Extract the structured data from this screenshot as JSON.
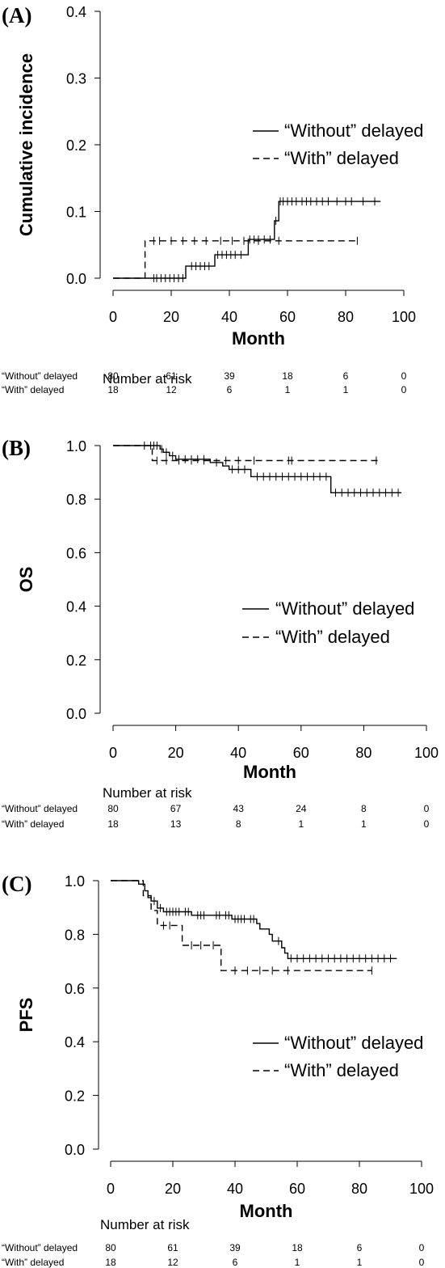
{
  "chart_data": [
    {
      "type": "line",
      "panel_label": "(A)",
      "ylabel": "Cumulative incidence",
      "xlabel": "Month",
      "xlim": [
        0,
        100
      ],
      "ylim": [
        0,
        0.4
      ],
      "x_ticks": [
        "0",
        "20",
        "40",
        "60",
        "80",
        "100"
      ],
      "y_ticks": [
        "0.0",
        "0.1",
        "0.2",
        "0.3",
        "0.4"
      ],
      "legend_position": "right",
      "series": [
        {
          "name": "“Without” delayed",
          "style": "solid",
          "steps": [
            [
              0,
              0.0
            ],
            [
              25,
              0.0
            ],
            [
              25,
              0.018
            ],
            [
              35,
              0.018
            ],
            [
              35,
              0.035
            ],
            [
              46.5,
              0.035
            ],
            [
              46.5,
              0.058
            ],
            [
              55.5,
              0.058
            ],
            [
              55.5,
              0.086
            ],
            [
              57,
              0.086
            ],
            [
              57,
              0.115
            ],
            [
              92,
              0.115
            ]
          ],
          "censor_times": [
            14,
            15,
            16.5,
            18,
            19.5,
            21,
            22.5,
            24,
            27,
            28.5,
            30,
            31.5,
            33,
            36,
            37.5,
            39,
            40.5,
            42,
            44,
            47,
            48.5,
            50,
            52,
            54,
            56,
            57.5,
            58.5,
            60,
            61.5,
            63,
            65,
            66.5,
            68,
            70,
            72,
            74,
            77,
            80,
            82,
            86,
            90
          ]
        },
        {
          "name": "“With” delayed",
          "style": "dashed",
          "steps": [
            [
              0,
              0.0
            ],
            [
              11,
              0.0
            ],
            [
              11,
              0.056
            ],
            [
              84,
              0.056
            ]
          ],
          "censor_times": [
            14,
            16,
            20,
            24,
            28,
            32,
            37,
            41,
            45,
            50,
            57,
            84
          ]
        }
      ]
    },
    {
      "type": "line",
      "panel_label": "(B)",
      "ylabel": "OS",
      "xlabel": "Month",
      "xlim": [
        0,
        100
      ],
      "ylim": [
        0,
        1.0
      ],
      "x_ticks": [
        "0",
        "20",
        "40",
        "60",
        "80",
        "100"
      ],
      "y_ticks": [
        "0.0",
        "0.2",
        "0.4",
        "0.6",
        "0.8",
        "1.0"
      ],
      "legend_position": "right",
      "series": [
        {
          "name": "“Without” delayed",
          "style": "solid",
          "steps": [
            [
              0,
              1.0
            ],
            [
              15,
              1.0
            ],
            [
              15,
              0.987
            ],
            [
              16,
              0.987
            ],
            [
              16,
              0.975
            ],
            [
              18,
              0.975
            ],
            [
              18,
              0.962
            ],
            [
              20,
              0.962
            ],
            [
              20,
              0.949
            ],
            [
              31,
              0.949
            ],
            [
              31,
              0.937
            ],
            [
              35,
              0.937
            ],
            [
              35,
              0.924
            ],
            [
              37,
              0.924
            ],
            [
              37,
              0.911
            ],
            [
              44,
              0.911
            ],
            [
              44,
              0.884
            ],
            [
              69.5,
              0.884
            ],
            [
              69.5,
              0.824
            ],
            [
              92,
              0.824
            ]
          ],
          "censor_times": [
            10,
            12,
            13,
            14,
            15.5,
            17,
            19,
            21,
            23,
            25,
            27,
            29,
            33,
            38,
            40,
            42,
            46,
            48,
            50,
            52,
            54,
            56,
            58,
            60,
            62,
            64,
            66,
            68,
            71,
            73,
            75,
            77,
            79,
            81,
            83,
            85,
            87,
            89,
            91
          ]
        },
        {
          "name": "“With” delayed",
          "style": "dashed",
          "steps": [
            [
              0,
              1.0
            ],
            [
              12.5,
              1.0
            ],
            [
              12.5,
              0.944
            ],
            [
              85,
              0.944
            ]
          ],
          "censor_times": [
            14,
            17,
            21,
            25,
            29,
            36,
            40,
            45,
            56,
            57,
            84
          ]
        }
      ]
    },
    {
      "type": "line",
      "panel_label": "(C)",
      "ylabel": "PFS",
      "xlabel": "Month",
      "xlim": [
        0,
        100
      ],
      "ylim": [
        0,
        1.0
      ],
      "x_ticks": [
        "0",
        "20",
        "40",
        "60",
        "80",
        "100"
      ],
      "y_ticks": [
        "0.0",
        "0.2",
        "0.4",
        "0.6",
        "0.8",
        "1.0"
      ],
      "legend_position": "right",
      "series": [
        {
          "name": "“Without” delayed",
          "style": "solid",
          "steps": [
            [
              0,
              1.0
            ],
            [
              9,
              1.0
            ],
            [
              9,
              0.987
            ],
            [
              11,
              0.987
            ],
            [
              11,
              0.962
            ],
            [
              12,
              0.962
            ],
            [
              12,
              0.937
            ],
            [
              13,
              0.937
            ],
            [
              13,
              0.924
            ],
            [
              15,
              0.924
            ],
            [
              15,
              0.898
            ],
            [
              17,
              0.898
            ],
            [
              17,
              0.884
            ],
            [
              26,
              0.884
            ],
            [
              26,
              0.871
            ],
            [
              39,
              0.871
            ],
            [
              39,
              0.857
            ],
            [
              47,
              0.857
            ],
            [
              47,
              0.84
            ],
            [
              48,
              0.84
            ],
            [
              48,
              0.82
            ],
            [
              51,
              0.82
            ],
            [
              51,
              0.8
            ],
            [
              52,
              0.8
            ],
            [
              52,
              0.775
            ],
            [
              55,
              0.775
            ],
            [
              55,
              0.75
            ],
            [
              56,
              0.75
            ],
            [
              56,
              0.73
            ],
            [
              57,
              0.73
            ],
            [
              57,
              0.71
            ],
            [
              92,
              0.71
            ]
          ],
          "censor_times": [
            14,
            16,
            18,
            19,
            20,
            21,
            22,
            24,
            25,
            28,
            29,
            30,
            34,
            35,
            37,
            38,
            40,
            41,
            42,
            43,
            45,
            46,
            54,
            58,
            60,
            62,
            64,
            66,
            68,
            70,
            72,
            74,
            76,
            78,
            80,
            82,
            84,
            86,
            88,
            90
          ]
        },
        {
          "name": "“With” delayed",
          "style": "dashed",
          "steps": [
            [
              0,
              1.0
            ],
            [
              10.5,
              1.0
            ],
            [
              10.5,
              0.944
            ],
            [
              13,
              0.944
            ],
            [
              13,
              0.889
            ],
            [
              15,
              0.889
            ],
            [
              15,
              0.833
            ],
            [
              23,
              0.833
            ],
            [
              23,
              0.759
            ],
            [
              35.5,
              0.759
            ],
            [
              35.5,
              0.665
            ],
            [
              84,
              0.665
            ]
          ],
          "censor_times": [
            17,
            19,
            26,
            29,
            33,
            40,
            44,
            48,
            52,
            57,
            84
          ]
        }
      ]
    }
  ],
  "risk_tables": [
    {
      "title": "Number at risk",
      "rows": [
        {
          "label": "“Without” delayed",
          "values": [
            "80",
            "61",
            "39",
            "18",
            "6",
            "0"
          ]
        },
        {
          "label": "“With” delayed",
          "values": [
            "18",
            "12",
            "6",
            "1",
            "1",
            "0"
          ]
        }
      ]
    },
    {
      "title": "Number at risk",
      "rows": [
        {
          "label": "“Without” delayed",
          "values": [
            "80",
            "67",
            "43",
            "24",
            "8",
            "0"
          ]
        },
        {
          "label": "“With” delayed",
          "values": [
            "18",
            "13",
            "8",
            "1",
            "1",
            "0"
          ]
        }
      ]
    },
    {
      "title": "Number at risk",
      "rows": [
        {
          "label": "“Without” delayed",
          "values": [
            "80",
            "61",
            "39",
            "18",
            "6",
            "0"
          ]
        },
        {
          "label": "“With” delayed",
          "values": [
            "18",
            "12",
            "6",
            "1",
            "1",
            "0"
          ]
        }
      ]
    }
  ]
}
